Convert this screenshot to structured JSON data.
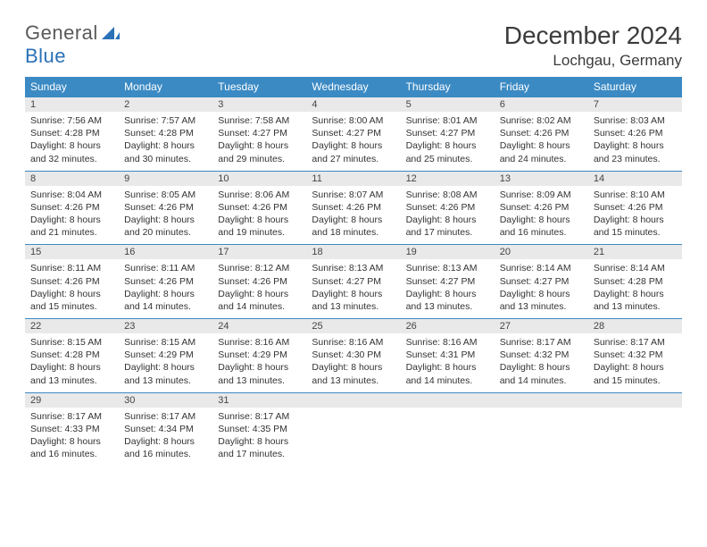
{
  "brand": {
    "general": "General",
    "blue": "Blue"
  },
  "title": "December 2024",
  "location": "Lochgau, Germany",
  "colors": {
    "headerBg": "#3b8ac4",
    "headerText": "#ffffff",
    "dayNumBg": "#e9e9e9",
    "rowBorder": "#3b8ac4",
    "bodyText": "#333333",
    "brandGray": "#5a5a5a",
    "brandBlue": "#2a71b8",
    "pageBg": "#ffffff"
  },
  "typography": {
    "titleFontSize": 28,
    "locationFontSize": 17,
    "dayHeaderFontSize": 12,
    "dayNumFontSize": 11,
    "bodyFontSize": 10.5
  },
  "layout": {
    "columns": 7,
    "rows": 5,
    "cellMinHeight": 60
  },
  "weekdays": [
    "Sunday",
    "Monday",
    "Tuesday",
    "Wednesday",
    "Thursday",
    "Friday",
    "Saturday"
  ],
  "weeks": [
    [
      {
        "n": "1",
        "sr": "Sunrise: 7:56 AM",
        "ss": "Sunset: 4:28 PM",
        "dl": "Daylight: 8 hours and 32 minutes."
      },
      {
        "n": "2",
        "sr": "Sunrise: 7:57 AM",
        "ss": "Sunset: 4:28 PM",
        "dl": "Daylight: 8 hours and 30 minutes."
      },
      {
        "n": "3",
        "sr": "Sunrise: 7:58 AM",
        "ss": "Sunset: 4:27 PM",
        "dl": "Daylight: 8 hours and 29 minutes."
      },
      {
        "n": "4",
        "sr": "Sunrise: 8:00 AM",
        "ss": "Sunset: 4:27 PM",
        "dl": "Daylight: 8 hours and 27 minutes."
      },
      {
        "n": "5",
        "sr": "Sunrise: 8:01 AM",
        "ss": "Sunset: 4:27 PM",
        "dl": "Daylight: 8 hours and 25 minutes."
      },
      {
        "n": "6",
        "sr": "Sunrise: 8:02 AM",
        "ss": "Sunset: 4:26 PM",
        "dl": "Daylight: 8 hours and 24 minutes."
      },
      {
        "n": "7",
        "sr": "Sunrise: 8:03 AM",
        "ss": "Sunset: 4:26 PM",
        "dl": "Daylight: 8 hours and 23 minutes."
      }
    ],
    [
      {
        "n": "8",
        "sr": "Sunrise: 8:04 AM",
        "ss": "Sunset: 4:26 PM",
        "dl": "Daylight: 8 hours and 21 minutes."
      },
      {
        "n": "9",
        "sr": "Sunrise: 8:05 AM",
        "ss": "Sunset: 4:26 PM",
        "dl": "Daylight: 8 hours and 20 minutes."
      },
      {
        "n": "10",
        "sr": "Sunrise: 8:06 AM",
        "ss": "Sunset: 4:26 PM",
        "dl": "Daylight: 8 hours and 19 minutes."
      },
      {
        "n": "11",
        "sr": "Sunrise: 8:07 AM",
        "ss": "Sunset: 4:26 PM",
        "dl": "Daylight: 8 hours and 18 minutes."
      },
      {
        "n": "12",
        "sr": "Sunrise: 8:08 AM",
        "ss": "Sunset: 4:26 PM",
        "dl": "Daylight: 8 hours and 17 minutes."
      },
      {
        "n": "13",
        "sr": "Sunrise: 8:09 AM",
        "ss": "Sunset: 4:26 PM",
        "dl": "Daylight: 8 hours and 16 minutes."
      },
      {
        "n": "14",
        "sr": "Sunrise: 8:10 AM",
        "ss": "Sunset: 4:26 PM",
        "dl": "Daylight: 8 hours and 15 minutes."
      }
    ],
    [
      {
        "n": "15",
        "sr": "Sunrise: 8:11 AM",
        "ss": "Sunset: 4:26 PM",
        "dl": "Daylight: 8 hours and 15 minutes."
      },
      {
        "n": "16",
        "sr": "Sunrise: 8:11 AM",
        "ss": "Sunset: 4:26 PM",
        "dl": "Daylight: 8 hours and 14 minutes."
      },
      {
        "n": "17",
        "sr": "Sunrise: 8:12 AM",
        "ss": "Sunset: 4:26 PM",
        "dl": "Daylight: 8 hours and 14 minutes."
      },
      {
        "n": "18",
        "sr": "Sunrise: 8:13 AM",
        "ss": "Sunset: 4:27 PM",
        "dl": "Daylight: 8 hours and 13 minutes."
      },
      {
        "n": "19",
        "sr": "Sunrise: 8:13 AM",
        "ss": "Sunset: 4:27 PM",
        "dl": "Daylight: 8 hours and 13 minutes."
      },
      {
        "n": "20",
        "sr": "Sunrise: 8:14 AM",
        "ss": "Sunset: 4:27 PM",
        "dl": "Daylight: 8 hours and 13 minutes."
      },
      {
        "n": "21",
        "sr": "Sunrise: 8:14 AM",
        "ss": "Sunset: 4:28 PM",
        "dl": "Daylight: 8 hours and 13 minutes."
      }
    ],
    [
      {
        "n": "22",
        "sr": "Sunrise: 8:15 AM",
        "ss": "Sunset: 4:28 PM",
        "dl": "Daylight: 8 hours and 13 minutes."
      },
      {
        "n": "23",
        "sr": "Sunrise: 8:15 AM",
        "ss": "Sunset: 4:29 PM",
        "dl": "Daylight: 8 hours and 13 minutes."
      },
      {
        "n": "24",
        "sr": "Sunrise: 8:16 AM",
        "ss": "Sunset: 4:29 PM",
        "dl": "Daylight: 8 hours and 13 minutes."
      },
      {
        "n": "25",
        "sr": "Sunrise: 8:16 AM",
        "ss": "Sunset: 4:30 PM",
        "dl": "Daylight: 8 hours and 13 minutes."
      },
      {
        "n": "26",
        "sr": "Sunrise: 8:16 AM",
        "ss": "Sunset: 4:31 PM",
        "dl": "Daylight: 8 hours and 14 minutes."
      },
      {
        "n": "27",
        "sr": "Sunrise: 8:17 AM",
        "ss": "Sunset: 4:32 PM",
        "dl": "Daylight: 8 hours and 14 minutes."
      },
      {
        "n": "28",
        "sr": "Sunrise: 8:17 AM",
        "ss": "Sunset: 4:32 PM",
        "dl": "Daylight: 8 hours and 15 minutes."
      }
    ],
    [
      {
        "n": "29",
        "sr": "Sunrise: 8:17 AM",
        "ss": "Sunset: 4:33 PM",
        "dl": "Daylight: 8 hours and 16 minutes."
      },
      {
        "n": "30",
        "sr": "Sunrise: 8:17 AM",
        "ss": "Sunset: 4:34 PM",
        "dl": "Daylight: 8 hours and 16 minutes."
      },
      {
        "n": "31",
        "sr": "Sunrise: 8:17 AM",
        "ss": "Sunset: 4:35 PM",
        "dl": "Daylight: 8 hours and 17 minutes."
      },
      {
        "n": "",
        "sr": "",
        "ss": "",
        "dl": ""
      },
      {
        "n": "",
        "sr": "",
        "ss": "",
        "dl": ""
      },
      {
        "n": "",
        "sr": "",
        "ss": "",
        "dl": ""
      },
      {
        "n": "",
        "sr": "",
        "ss": "",
        "dl": ""
      }
    ]
  ]
}
